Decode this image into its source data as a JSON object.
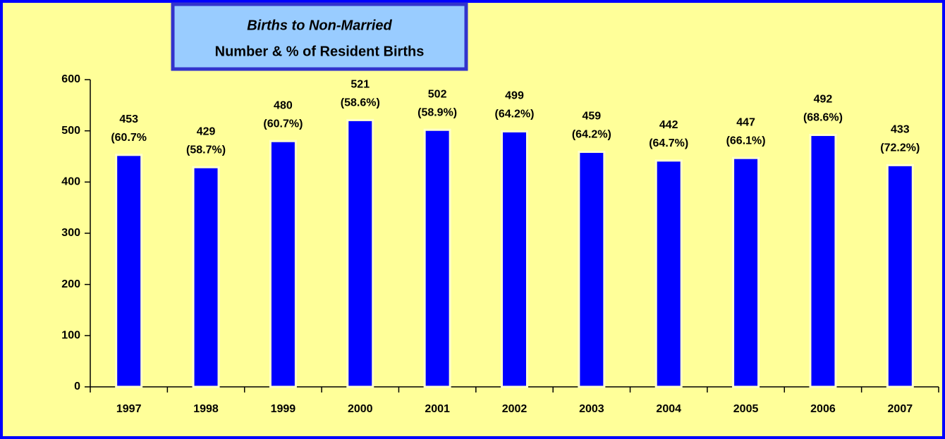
{
  "chart_data": {
    "type": "bar",
    "title": "Births to Non-Married",
    "subtitle": "Number & % of Resident Births",
    "categories": [
      "1997",
      "1998",
      "1999",
      "2000",
      "2001",
      "2002",
      "2003",
      "2004",
      "2005",
      "2006",
      "2007"
    ],
    "values": [
      453,
      429,
      480,
      521,
      502,
      499,
      459,
      442,
      447,
      492,
      433
    ],
    "share_labels": [
      "(60.7%",
      "(58.7%)",
      "(60.7%)",
      "(58.6%)",
      "(58.9%)",
      "(64.2%)",
      "(64.2%)",
      "(64.7%)",
      "(66.1%)",
      "(68.6%)",
      "(72.2%)"
    ],
    "color": "#0000ff",
    "ylim": [
      0,
      600
    ],
    "yticks": [
      0,
      100,
      200,
      300,
      400,
      500,
      600
    ],
    "grid": false
  }
}
